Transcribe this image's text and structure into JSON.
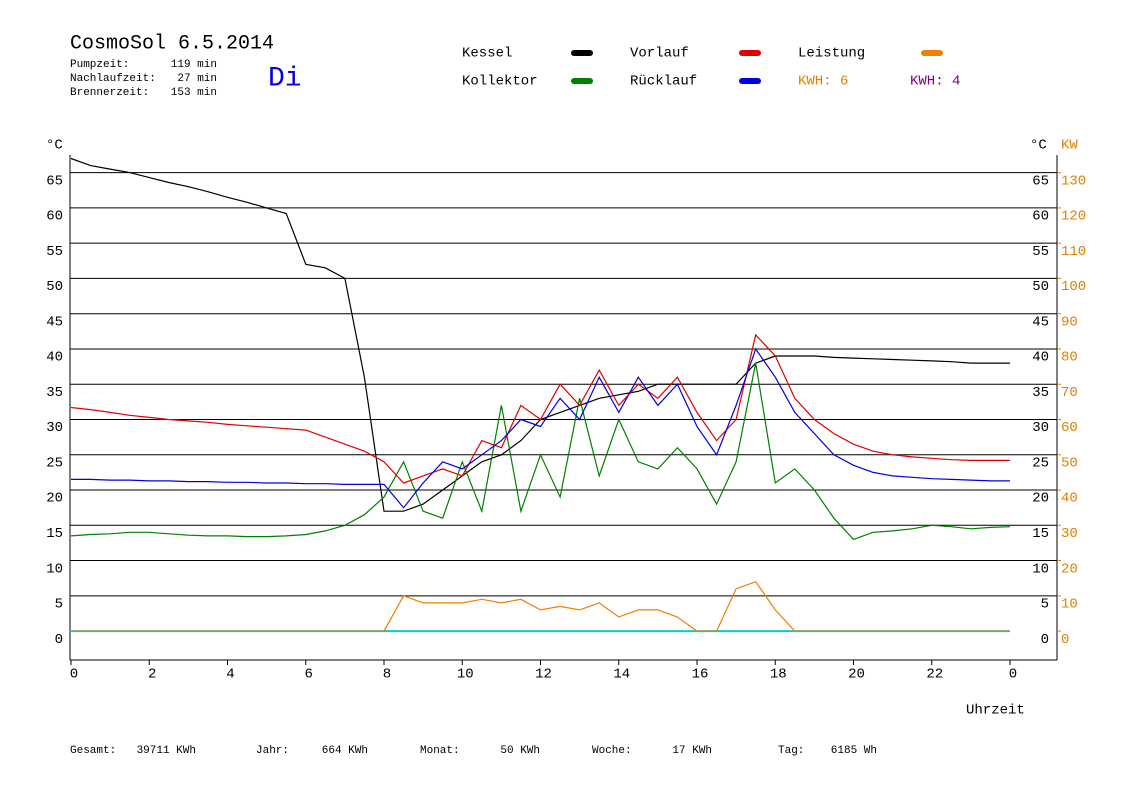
{
  "header": {
    "title": "CosmoSol 6.5.2014",
    "day": "Di",
    "stats": [
      {
        "label": "Pumpzeit:",
        "value": "119 min"
      },
      {
        "label": "Nachlaufzeit:",
        "value": "27 min"
      },
      {
        "label": "Brennerzeit:",
        "value": "153 min"
      }
    ]
  },
  "chart_data": {
    "type": "line",
    "y_label": "°C",
    "y2_label": "KW",
    "x_label": "Uhrzeit",
    "x": [
      0,
      0.5,
      1,
      1.5,
      2,
      2.5,
      3,
      3.5,
      4,
      4.5,
      5,
      5.5,
      6,
      6.5,
      7,
      7.5,
      8,
      8.5,
      9,
      9.5,
      10,
      10.5,
      11,
      11.5,
      12,
      12.5,
      13,
      13.5,
      14,
      14.5,
      15,
      15.5,
      16,
      16.5,
      17,
      17.5,
      18,
      18.5,
      19,
      19.5,
      20,
      20.5,
      21,
      21.5,
      22,
      22.5,
      23,
      23.5,
      24
    ],
    "xlim": [
      0,
      24
    ],
    "xticks": [
      0,
      2,
      4,
      6,
      8,
      10,
      12,
      14,
      16,
      18,
      20,
      22,
      {
        "value": 24,
        "label": "0"
      }
    ],
    "ylim": [
      -4.1,
      67.5
    ],
    "yticks": [
      0,
      5,
      10,
      15,
      20,
      25,
      30,
      35,
      40,
      45,
      50,
      55,
      60,
      65
    ],
    "y2lim": [
      -8.2,
      135
    ],
    "y2ticks": [
      0,
      10,
      20,
      30,
      40,
      50,
      60,
      70,
      80,
      90,
      100,
      110,
      120,
      130
    ],
    "grid": true,
    "series": [
      {
        "name": "Kessel",
        "color": "#000000",
        "values": [
          67,
          66,
          65.5,
          65,
          64.3,
          63.6,
          63,
          62.3,
          61.5,
          60.8,
          60,
          59.2,
          52,
          51.5,
          50,
          36,
          17,
          17,
          18,
          20,
          22,
          24,
          25,
          27,
          30,
          31,
          32,
          33,
          33.5,
          34,
          35,
          35,
          35,
          35,
          35,
          38,
          39,
          39,
          39,
          38.8,
          38.7,
          38.6,
          38.5,
          38.4,
          38.3,
          38.2,
          38,
          38,
          38
        ]
      },
      {
        "name": "Kollektor",
        "color": "#008000",
        "values": [
          13.5,
          13.7,
          13.8,
          14,
          14,
          13.8,
          13.6,
          13.5,
          13.5,
          13.4,
          13.4,
          13.5,
          13.7,
          14.2,
          15,
          16.5,
          19,
          24,
          17,
          16,
          24,
          17,
          32,
          17,
          25,
          19,
          33,
          22,
          30,
          24,
          23,
          26,
          23,
          18,
          24,
          38,
          21,
          23,
          20,
          16,
          13,
          14,
          14.2,
          14.5,
          15,
          14.8,
          14.5,
          14.7,
          14.8
        ]
      },
      {
        "name": "Vorlauf",
        "color": "#e00000",
        "values": [
          31.7,
          31.4,
          31,
          30.6,
          30.3,
          30,
          29.8,
          29.6,
          29.3,
          29.1,
          28.9,
          28.7,
          28.5,
          27.5,
          26.5,
          25.5,
          24,
          21,
          22,
          23,
          22,
          27,
          26,
          32,
          30,
          35,
          32,
          37,
          32,
          35,
          33,
          36,
          31,
          27,
          30,
          42,
          39,
          33,
          30,
          28,
          26.5,
          25.5,
          25,
          24.7,
          24.5,
          24.3,
          24.2,
          24.2,
          24.2
        ]
      },
      {
        "name": "Rücklauf",
        "color": "#0000e0",
        "values": [
          21.5,
          21.5,
          21.4,
          21.4,
          21.3,
          21.3,
          21.2,
          21.2,
          21.1,
          21.1,
          21,
          21,
          20.9,
          20.9,
          20.8,
          20.8,
          20.8,
          17.5,
          21,
          24,
          23,
          25,
          27,
          30,
          29,
          33,
          30,
          36,
          31,
          36,
          32,
          35,
          29,
          25,
          32,
          40,
          36,
          31,
          28,
          25,
          23.5,
          22.5,
          22,
          21.8,
          21.6,
          21.5,
          21.4,
          21.3,
          21.3
        ]
      },
      {
        "name": "Leistung",
        "color": "#f08000",
        "axis": "y2",
        "values": [
          0,
          0,
          0,
          0,
          0,
          0,
          0,
          0,
          0,
          0,
          0,
          0,
          0,
          0,
          0,
          0,
          0,
          10,
          8,
          8,
          8,
          9,
          8,
          9,
          6,
          7,
          6,
          8,
          4,
          6,
          6,
          4,
          0,
          0,
          12,
          14,
          6,
          0,
          0,
          0,
          0,
          0,
          0,
          0,
          0,
          0,
          0,
          0,
          0
        ]
      }
    ],
    "annotations": [
      {
        "text": "KWH: 6",
        "color": "#e08000"
      },
      {
        "text": "KWH: 4",
        "color": "#800080"
      }
    ]
  },
  "footer": [
    {
      "label": "Gesamt:",
      "value": "39711 KWh"
    },
    {
      "label": "Jahr:",
      "value": "664 KWh"
    },
    {
      "label": "Monat:",
      "value": "50 KWh"
    },
    {
      "label": "Woche:",
      "value": "17 KWh"
    },
    {
      "label": "Tag:",
      "value": "6185 Wh"
    }
  ]
}
